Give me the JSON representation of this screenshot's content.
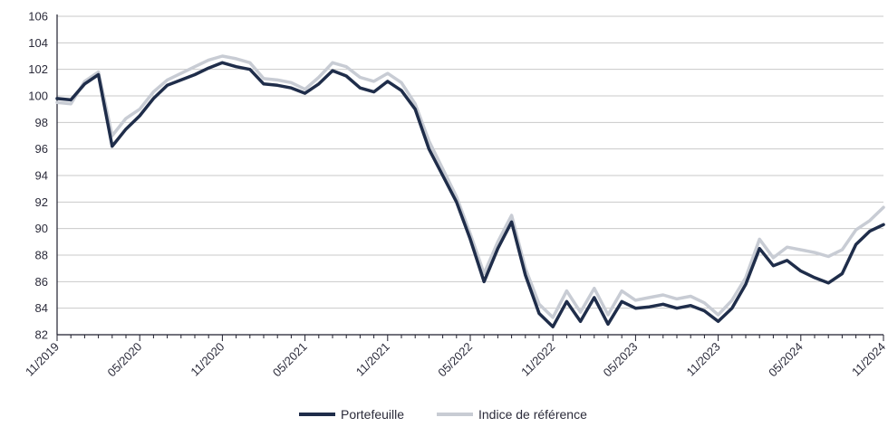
{
  "chart_data": {
    "type": "line",
    "title": "",
    "xlabel": "",
    "ylabel": "",
    "ylim": [
      82,
      106
    ],
    "y_ticks": [
      82,
      84,
      86,
      88,
      90,
      92,
      94,
      96,
      98,
      100,
      102,
      104,
      106
    ],
    "x_range": [
      "2019-11",
      "2024-11"
    ],
    "x_tick_labels": [
      "11/2019",
      "05/2020",
      "11/2020",
      "05/2021",
      "11/2021",
      "05/2022",
      "11/2022",
      "05/2023",
      "11/2023",
      "05/2024",
      "11/2024"
    ],
    "grid": "horizontal",
    "legend_position": "bottom-center",
    "x": [
      "2019-11",
      "2019-12",
      "2020-01",
      "2020-02",
      "2020-03",
      "2020-04",
      "2020-05",
      "2020-06",
      "2020-07",
      "2020-08",
      "2020-09",
      "2020-10",
      "2020-11",
      "2020-12",
      "2021-01",
      "2021-02",
      "2021-03",
      "2021-04",
      "2021-05",
      "2021-06",
      "2021-07",
      "2021-08",
      "2021-09",
      "2021-10",
      "2021-11",
      "2021-12",
      "2022-01",
      "2022-02",
      "2022-03",
      "2022-04",
      "2022-05",
      "2022-06",
      "2022-07",
      "2022-08",
      "2022-09",
      "2022-10",
      "2022-11",
      "2022-12",
      "2023-01",
      "2023-02",
      "2023-03",
      "2023-04",
      "2023-05",
      "2023-06",
      "2023-07",
      "2023-08",
      "2023-09",
      "2023-10",
      "2023-11",
      "2023-12",
      "2024-01",
      "2024-02",
      "2024-03",
      "2024-04",
      "2024-05",
      "2024-06",
      "2024-07",
      "2024-08",
      "2024-09",
      "2024-10",
      "2024-11"
    ],
    "series": [
      {
        "name": "Portefeuille",
        "color": "#1f2d4a",
        "values": [
          99.8,
          99.7,
          100.9,
          101.6,
          96.2,
          97.5,
          98.5,
          99.8,
          100.8,
          101.2,
          101.6,
          102.1,
          102.5,
          102.2,
          102.0,
          100.9,
          100.8,
          100.6,
          100.2,
          100.9,
          101.9,
          101.5,
          100.6,
          100.3,
          101.1,
          100.4,
          99.0,
          96.0,
          94.0,
          92.0,
          89.2,
          86.0,
          88.5,
          90.5,
          86.5,
          83.6,
          82.6,
          84.5,
          83.0,
          84.8,
          82.8,
          84.5,
          84.0,
          84.1,
          84.3,
          84.0,
          84.2,
          83.8,
          83.0,
          84.0,
          85.8,
          88.5,
          87.2,
          87.6,
          86.8,
          86.3,
          85.9,
          86.6,
          88.8,
          89.8,
          90.3
        ]
      },
      {
        "name": "Indice de référence",
        "color": "#c8ccd4",
        "values": [
          99.5,
          99.4,
          101.1,
          101.8,
          97.0,
          98.3,
          99.0,
          100.3,
          101.2,
          101.7,
          102.2,
          102.7,
          103.0,
          102.8,
          102.5,
          101.3,
          101.2,
          101.0,
          100.5,
          101.4,
          102.5,
          102.2,
          101.4,
          101.1,
          101.7,
          101.0,
          99.4,
          96.6,
          94.5,
          92.4,
          89.6,
          86.6,
          89.0,
          91.0,
          87.0,
          84.3,
          83.3,
          85.3,
          83.7,
          85.5,
          83.5,
          85.3,
          84.6,
          84.8,
          85.0,
          84.7,
          84.9,
          84.4,
          83.5,
          84.6,
          86.3,
          89.2,
          87.8,
          88.6,
          88.4,
          88.2,
          87.9,
          88.4,
          89.9,
          90.6,
          91.6
        ]
      }
    ]
  }
}
